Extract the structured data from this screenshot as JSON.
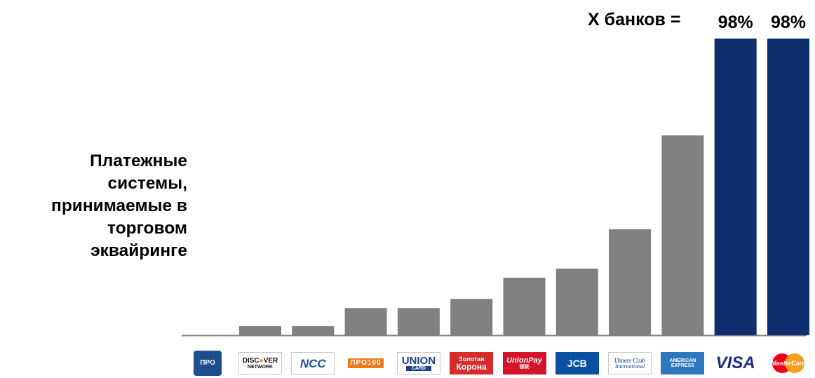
{
  "side_label": [
    "Платежные",
    "системы,",
    "принимаемые в",
    "торговом",
    "эквайринге"
  ],
  "top_label": "Х банков =",
  "chart_data": {
    "type": "bar",
    "title": "",
    "xlabel": "",
    "ylabel": "",
    "ylim": [
      0,
      100
    ],
    "grid": false,
    "legend": "none",
    "categories": [
      "ПРО",
      "Discover Network",
      "NCC",
      "ПРО100",
      "Union Card",
      "Золотая Корона",
      "UnionPay",
      "JCB",
      "Diners Club International",
      "American Express",
      "VISA",
      "MasterCard"
    ],
    "values": [
      0,
      3,
      3,
      9,
      9,
      12,
      19,
      22,
      35,
      66,
      98,
      98
    ],
    "data_labels": [
      "",
      "",
      "",
      "",
      "",
      "",
      "",
      "",
      "",
      "",
      "98%",
      "98%"
    ],
    "colors": [
      "#808080",
      "#808080",
      "#808080",
      "#808080",
      "#808080",
      "#808080",
      "#808080",
      "#808080",
      "#808080",
      "#808080",
      "#0d2d6c",
      "#0d2d6c"
    ]
  },
  "logos": [
    {
      "icon": "pro-card-icon",
      "text": "ПРО",
      "bg": "#1c4f8c",
      "fg": "#ffffff"
    },
    {
      "icon": "discover-icon",
      "text": "DISCOVER",
      "sub": "NETWORK",
      "bg": "#ffffff",
      "fg": "#111111",
      "accent": "#f7941d"
    },
    {
      "icon": "ncc-icon",
      "text": "NCC",
      "bg": "#ffffff",
      "fg": "#1a4fa0"
    },
    {
      "icon": "pro100-icon",
      "text": "ПРО100",
      "bg": "#ffffff",
      "fg": "#f07a1a",
      "accent": "#5aa52a"
    },
    {
      "icon": "union-card-icon",
      "text": "UNION",
      "sub": "CARD",
      "bg": "#ffffff",
      "fg": "#1a3f8c"
    },
    {
      "icon": "zolotaya-korona-icon",
      "text": "Золотая",
      "sub": "Корона",
      "bg": "#d62b2b",
      "fg": "#ffffff"
    },
    {
      "icon": "unionpay-icon",
      "text": "UnionPay",
      "sub": "银联",
      "bg": "#d4142a",
      "fg": "#ffffff",
      "accent": "#0a5aa4"
    },
    {
      "icon": "jcb-icon",
      "text": "JCB",
      "bg": "#0a4fa0",
      "fg": "#ffffff",
      "accent": "#d2232a"
    },
    {
      "icon": "diners-club-icon",
      "text": "Diners Club",
      "sub": "International",
      "bg": "#ffffff",
      "fg": "#0a3a80"
    },
    {
      "icon": "american-express-icon",
      "text": "AMERICAN",
      "sub": "EXPRESS",
      "bg": "#2e78c2",
      "fg": "#ffffff"
    },
    {
      "icon": "visa-icon",
      "text": "VISA",
      "bg": "#ffffff",
      "fg": "#1a2f8c"
    },
    {
      "icon": "mastercard-icon",
      "text": "MasterCard",
      "bg": "#ffffff",
      "fg": "#ffffff",
      "accent": "#eb001b"
    }
  ]
}
